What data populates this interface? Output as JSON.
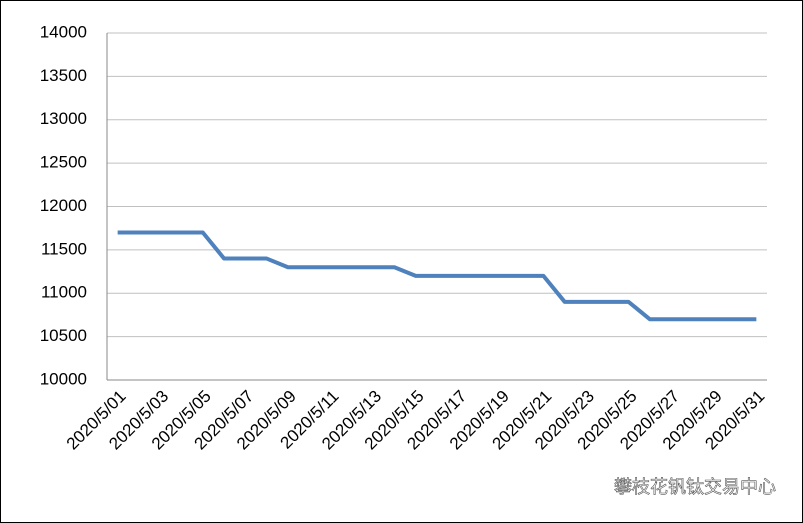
{
  "chart_data": {
    "type": "line",
    "categories": [
      "2020/5/01",
      null,
      "2020/5/03",
      null,
      "2020/5/05",
      null,
      "2020/5/07",
      null,
      "2020/5/09",
      null,
      "2020/5/11",
      null,
      "2020/5/13",
      null,
      "2020/5/15",
      null,
      "2020/5/17",
      null,
      "2020/5/19",
      null,
      "2020/5/21",
      null,
      "2020/5/23",
      null,
      "2020/5/25",
      null,
      "2020/5/27",
      null,
      "2020/5/29",
      null,
      "2020/5/31"
    ],
    "values": [
      11700,
      11700,
      11700,
      11700,
      11700,
      11400,
      11400,
      11400,
      11300,
      11300,
      11300,
      11300,
      11300,
      11300,
      11200,
      11200,
      11200,
      11200,
      11200,
      11200,
      11200,
      10900,
      10900,
      10900,
      10900,
      10700,
      10700,
      10700,
      10700,
      10700,
      10700
    ],
    "color": "#4f81bd",
    "ylim": [
      10000,
      14000
    ],
    "yticks": [
      10000,
      10500,
      11000,
      11500,
      12000,
      12500,
      13000,
      13500,
      14000
    ],
    "grid": true,
    "watermark": "攀枝花钒钛交易中心"
  }
}
